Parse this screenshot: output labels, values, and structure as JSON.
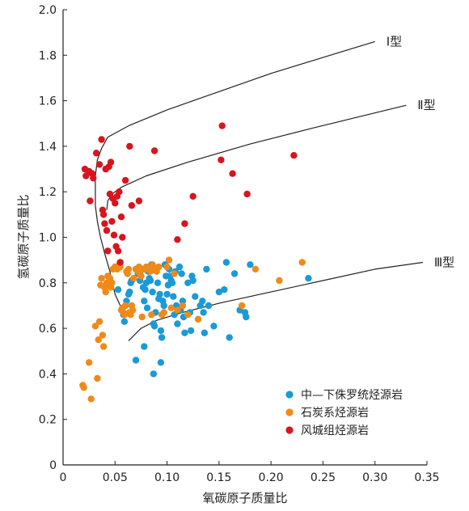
{
  "chart_data": {
    "type": "scatter",
    "title": "",
    "xlabel": "氧碳原子质量比",
    "ylabel": "氢碳原子质量比",
    "xlim": [
      0,
      0.35
    ],
    "ylim": [
      0,
      2.0
    ],
    "x_ticks": [
      "0",
      "0.05",
      "0.10",
      "0.15",
      "0.20",
      "0.25",
      "0.30",
      "0.35"
    ],
    "y_ticks": [
      "0",
      "0.2",
      "0.4",
      "0.6",
      "0.8",
      "1.0",
      "1.2",
      "1.4",
      "1.6",
      "1.8",
      "2.0"
    ],
    "grid": false,
    "legend": {
      "placement": "bottom-right"
    },
    "curves": [
      {
        "label": "Ⅰ型",
        "points": [
          [
            0.06,
            0.65
          ],
          [
            0.05,
            0.75
          ],
          [
            0.045,
            0.85
          ],
          [
            0.04,
            0.93
          ],
          [
            0.036,
            1.0
          ],
          [
            0.033,
            1.07
          ],
          [
            0.031,
            1.14
          ],
          [
            0.031,
            1.2
          ],
          [
            0.031,
            1.27
          ],
          [
            0.033,
            1.34
          ],
          [
            0.037,
            1.39
          ],
          [
            0.043,
            1.44
          ],
          [
            0.063,
            1.49
          ],
          [
            0.1,
            1.56
          ],
          [
            0.15,
            1.64
          ],
          [
            0.2,
            1.72
          ],
          [
            0.25,
            1.79
          ],
          [
            0.3,
            1.86
          ]
        ]
      },
      {
        "label": "Ⅱ型",
        "points": [
          [
            0.042,
            1.12
          ],
          [
            0.043,
            1.16
          ],
          [
            0.047,
            1.19
          ],
          [
            0.056,
            1.22
          ],
          [
            0.08,
            1.27
          ],
          [
            0.12,
            1.33
          ],
          [
            0.18,
            1.41
          ],
          [
            0.24,
            1.48
          ],
          [
            0.33,
            1.58
          ]
        ]
      },
      {
        "label": "Ⅲ型",
        "points": [
          [
            0.063,
            0.545
          ],
          [
            0.075,
            0.6
          ],
          [
            0.09,
            0.635
          ],
          [
            0.115,
            0.67
          ],
          [
            0.15,
            0.71
          ],
          [
            0.2,
            0.76
          ],
          [
            0.25,
            0.81
          ],
          [
            0.3,
            0.86
          ],
          [
            0.346,
            0.89
          ]
        ]
      }
    ],
    "series": [
      {
        "name": "中—下侏罗统烃源岩",
        "color": "#1a9ad6",
        "points": [
          [
            0.053,
            0.77
          ],
          [
            0.058,
            0.66
          ],
          [
            0.059,
            0.63
          ],
          [
            0.061,
            0.72
          ],
          [
            0.063,
            0.75
          ],
          [
            0.064,
            0.76
          ],
          [
            0.065,
            0.8
          ],
          [
            0.066,
            0.81
          ],
          [
            0.068,
            0.82
          ],
          [
            0.07,
            0.86
          ],
          [
            0.072,
            0.84
          ],
          [
            0.074,
            0.81
          ],
          [
            0.075,
            0.83
          ],
          [
            0.076,
            0.86
          ],
          [
            0.077,
            0.78
          ],
          [
            0.078,
            0.72
          ],
          [
            0.079,
            0.77
          ],
          [
            0.08,
            0.8
          ],
          [
            0.081,
            0.69
          ],
          [
            0.082,
            0.85
          ],
          [
            0.083,
            0.82
          ],
          [
            0.084,
            0.81
          ],
          [
            0.085,
            0.88
          ],
          [
            0.086,
            0.76
          ],
          [
            0.087,
            0.62
          ],
          [
            0.088,
            0.61
          ],
          [
            0.089,
            0.67
          ],
          [
            0.09,
            0.86
          ],
          [
            0.091,
            0.8
          ],
          [
            0.092,
            0.73
          ],
          [
            0.093,
            0.75
          ],
          [
            0.094,
            0.59
          ],
          [
            0.095,
            0.56
          ],
          [
            0.096,
            0.72
          ],
          [
            0.097,
            0.7
          ],
          [
            0.098,
            0.88
          ],
          [
            0.099,
            0.83
          ],
          [
            0.1,
            0.75
          ],
          [
            0.101,
            0.79
          ],
          [
            0.102,
            0.86
          ],
          [
            0.103,
            0.83
          ],
          [
            0.104,
            0.81
          ],
          [
            0.105,
            0.8
          ],
          [
            0.106,
            0.74
          ],
          [
            0.107,
            0.66
          ],
          [
            0.108,
            0.85
          ],
          [
            0.109,
            0.7
          ],
          [
            0.11,
            0.62
          ],
          [
            0.112,
            0.87
          ],
          [
            0.113,
            0.68
          ],
          [
            0.114,
            0.84
          ],
          [
            0.115,
            0.72
          ],
          [
            0.116,
            0.65
          ],
          [
            0.117,
            0.58
          ],
          [
            0.12,
            0.8
          ],
          [
            0.122,
            0.67
          ],
          [
            0.123,
            0.59
          ],
          [
            0.124,
            0.83
          ],
          [
            0.125,
            0.81
          ],
          [
            0.127,
            0.74
          ],
          [
            0.13,
            0.64
          ],
          [
            0.132,
            0.7
          ],
          [
            0.134,
            0.72
          ],
          [
            0.135,
            0.67
          ],
          [
            0.136,
            0.58
          ],
          [
            0.138,
            0.86
          ],
          [
            0.14,
            0.7
          ],
          [
            0.145,
            0.61
          ],
          [
            0.15,
            0.76
          ],
          [
            0.155,
            0.77
          ],
          [
            0.157,
            0.89
          ],
          [
            0.16,
            0.56
          ],
          [
            0.165,
            0.84
          ],
          [
            0.17,
            0.68
          ],
          [
            0.175,
            0.67
          ],
          [
            0.176,
            0.65
          ],
          [
            0.18,
            0.88
          ],
          [
            0.236,
            0.82
          ],
          [
            0.07,
            0.46
          ],
          [
            0.078,
            0.52
          ],
          [
            0.087,
            0.4
          ],
          [
            0.094,
            0.45
          ]
        ]
      },
      {
        "name": "石炭系烃源岩",
        "color": "#ef8a1a",
        "points": [
          [
            0.019,
            0.35
          ],
          [
            0.02,
            0.34
          ],
          [
            0.025,
            0.45
          ],
          [
            0.027,
            0.29
          ],
          [
            0.031,
            0.61
          ],
          [
            0.033,
            0.38
          ],
          [
            0.034,
            0.55
          ],
          [
            0.035,
            0.63
          ],
          [
            0.036,
            0.79
          ],
          [
            0.037,
            0.82
          ],
          [
            0.038,
            0.57
          ],
          [
            0.039,
            0.52
          ],
          [
            0.04,
            0.78
          ],
          [
            0.041,
            0.76
          ],
          [
            0.042,
            0.8
          ],
          [
            0.043,
            0.83
          ],
          [
            0.044,
            0.79
          ],
          [
            0.045,
            0.82
          ],
          [
            0.046,
            0.78
          ],
          [
            0.047,
            0.8
          ],
          [
            0.048,
            0.86
          ],
          [
            0.05,
            0.87
          ],
          [
            0.052,
            0.86
          ],
          [
            0.054,
            0.88
          ],
          [
            0.055,
            0.87
          ],
          [
            0.056,
            0.68
          ],
          [
            0.057,
            0.69
          ],
          [
            0.058,
            0.67
          ],
          [
            0.059,
            0.66
          ],
          [
            0.06,
            0.7
          ],
          [
            0.061,
            0.85
          ],
          [
            0.062,
            0.84
          ],
          [
            0.063,
            0.86
          ],
          [
            0.064,
            0.67
          ],
          [
            0.065,
            0.66
          ],
          [
            0.066,
            0.7
          ],
          [
            0.067,
            0.68
          ],
          [
            0.068,
            0.82
          ],
          [
            0.07,
            0.86
          ],
          [
            0.072,
            0.85
          ],
          [
            0.073,
            0.87
          ],
          [
            0.074,
            0.84
          ],
          [
            0.075,
            0.83
          ],
          [
            0.076,
            0.65
          ],
          [
            0.078,
            0.86
          ],
          [
            0.08,
            0.87
          ],
          [
            0.082,
            0.86
          ],
          [
            0.084,
            0.85
          ],
          [
            0.085,
            0.66
          ],
          [
            0.086,
            0.88
          ],
          [
            0.088,
            0.86
          ],
          [
            0.09,
            0.85
          ],
          [
            0.092,
            0.87
          ],
          [
            0.095,
            0.66
          ],
          [
            0.097,
            0.67
          ],
          [
            0.1,
            0.87
          ],
          [
            0.102,
            0.9
          ],
          [
            0.104,
            0.69
          ],
          [
            0.107,
            0.84
          ],
          [
            0.11,
            0.68
          ],
          [
            0.115,
            0.7
          ],
          [
            0.12,
            0.66
          ],
          [
            0.13,
            0.64
          ],
          [
            0.172,
            0.7
          ],
          [
            0.185,
            0.86
          ],
          [
            0.208,
            0.81
          ],
          [
            0.23,
            0.89
          ]
        ]
      },
      {
        "name": "风城组烃源岩",
        "color": "#d8141e",
        "points": [
          [
            0.021,
            1.3
          ],
          [
            0.022,
            1.27
          ],
          [
            0.025,
            1.29
          ],
          [
            0.026,
            1.16
          ],
          [
            0.028,
            1.28
          ],
          [
            0.029,
            1.26
          ],
          [
            0.032,
            1.37
          ],
          [
            0.035,
            1.32
          ],
          [
            0.037,
            1.43
          ],
          [
            0.038,
            1.12
          ],
          [
            0.039,
            1.1
          ],
          [
            0.04,
            1.06
          ],
          [
            0.041,
            1.3
          ],
          [
            0.042,
            1.03
          ],
          [
            0.043,
            0.94
          ],
          [
            0.044,
            1.31
          ],
          [
            0.045,
            1.19
          ],
          [
            0.046,
            1.33
          ],
          [
            0.047,
            1.07
          ],
          [
            0.048,
            1.17
          ],
          [
            0.049,
            1.01
          ],
          [
            0.05,
            1.15
          ],
          [
            0.051,
            0.96
          ],
          [
            0.052,
            1.18
          ],
          [
            0.053,
            0.94
          ],
          [
            0.054,
            1.2
          ],
          [
            0.055,
            0.89
          ],
          [
            0.056,
            1.09
          ],
          [
            0.057,
            1.0
          ],
          [
            0.06,
            1.25
          ],
          [
            0.064,
            1.4
          ],
          [
            0.066,
            1.14
          ],
          [
            0.073,
            1.16
          ],
          [
            0.088,
            1.38
          ],
          [
            0.11,
            0.99
          ],
          [
            0.117,
            1.06
          ],
          [
            0.125,
            1.18
          ],
          [
            0.152,
            1.34
          ],
          [
            0.153,
            1.49
          ],
          [
            0.163,
            1.28
          ],
          [
            0.177,
            1.19
          ],
          [
            0.222,
            1.36
          ]
        ]
      }
    ]
  }
}
